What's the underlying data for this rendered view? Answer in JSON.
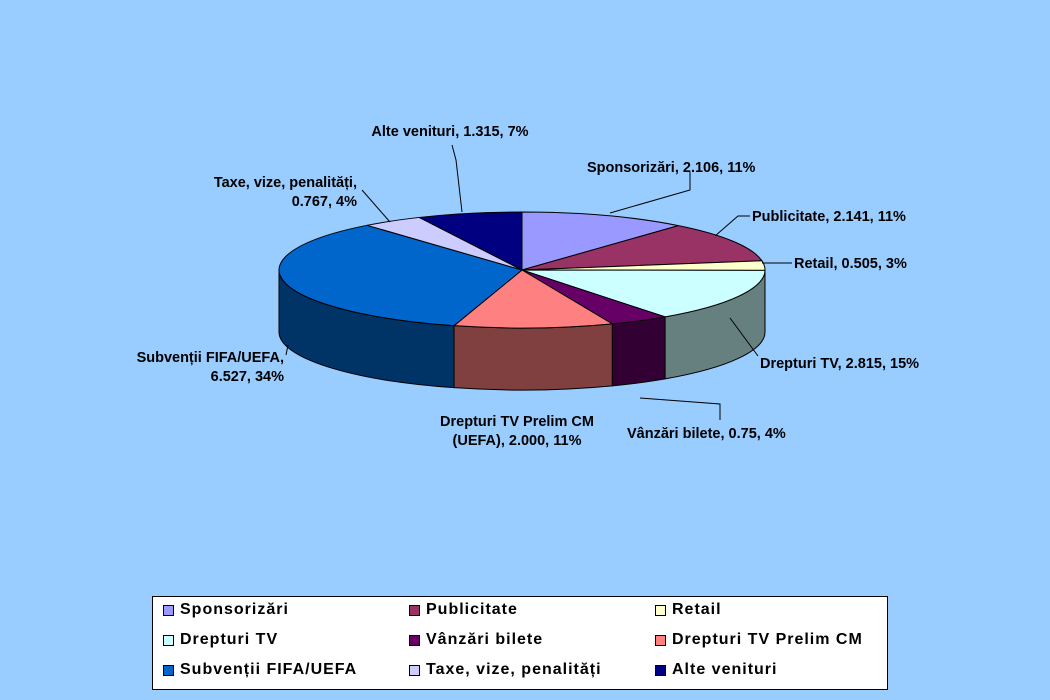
{
  "chart_data": {
    "type": "pie",
    "style": "3d-exploded-none",
    "legend_position": "bottom",
    "slices": [
      {
        "label": "Sponsorizări",
        "value": 2.106,
        "percent": "11%",
        "data_label": [
          "Sponsorizări, 2.106, 11%"
        ],
        "color": "#9999ff",
        "side_color": "#6b6bb3"
      },
      {
        "label": "Publicitate",
        "value": 2.141,
        "percent": "11%",
        "data_label": [
          "Publicitate, 2.141, 11%"
        ],
        "color": "#993366",
        "side_color": "#6b2447"
      },
      {
        "label": "Retail",
        "value": 0.505,
        "percent": "3%",
        "data_label": [
          "Retail, 0.505, 3%"
        ],
        "color": "#ffffcc",
        "side_color": "#b3b38f"
      },
      {
        "label": "Drepturi TV",
        "value": 2.815,
        "percent": "15%",
        "data_label": [
          "Drepturi TV, 2.815, 15%"
        ],
        "color": "#ccffff",
        "side_color": "#668080"
      },
      {
        "label": "Vânzări bilete",
        "value": 0.75,
        "percent": "4%",
        "data_label": [
          "Vânzări bilete, 0.75, 4%"
        ],
        "color": "#660066",
        "side_color": "#330033"
      },
      {
        "label": "Drepturi TV Prelim CM",
        "value": 2.0,
        "percent": "11%",
        "data_label": [
          "Drepturi TV Prelim CM",
          "(UEFA), 2.000, 11%"
        ],
        "color": "#ff8080",
        "side_color": "#804040"
      },
      {
        "label": "Subvenții FIFA/UEFA",
        "value": 6.527,
        "percent": "34%",
        "data_label": [
          "Subvenții FIFA/UEFA,",
          "6.527, 34%"
        ],
        "color": "#0066cc",
        "side_color": "#003366"
      },
      {
        "label": "Taxe, vize, penalități",
        "value": 0.767,
        "percent": "4%",
        "data_label": [
          "Taxe, vize, penalități,",
          "0.767, 4%"
        ],
        "color": "#ccccff",
        "side_color": "#8f8fb3"
      },
      {
        "label": "Alte venituri",
        "value": 1.315,
        "percent": "7%",
        "data_label": [
          "Alte venituri, 1.315, 7%"
        ],
        "color": "#000080",
        "side_color": "#000040"
      }
    ],
    "legend": {
      "rows": [
        [
          "Sponsorizări",
          "Publicitate",
          "Retail"
        ],
        [
          "Drepturi TV",
          "Vânzări bilete",
          "Drepturi TV Prelim CM"
        ],
        [
          "Subvenții FIFA/UEFA",
          "Taxe, vize, penalități",
          "Alte venituri"
        ]
      ]
    }
  }
}
